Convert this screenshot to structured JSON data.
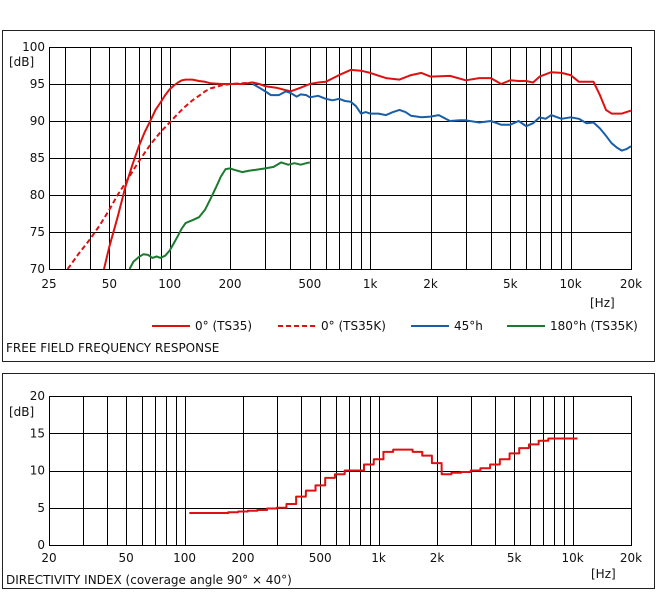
{
  "chart_data": [
    {
      "type": "line",
      "title": "FREE FIELD FREQUENCY RESPONSE",
      "ylabel": "[dB]",
      "xlabel": "[Hz]",
      "xscale": "log",
      "xlim": [
        25,
        20000
      ],
      "ylim": [
        70,
        100
      ],
      "grid": true,
      "legend_position": "bottom",
      "xticks": [
        25,
        50,
        100,
        200,
        500,
        1000,
        2000,
        5000,
        10000,
        20000
      ],
      "xtick_labels": [
        "25",
        "50",
        "100",
        "200",
        "500",
        "1k",
        "2k",
        "5k",
        "10k",
        "20k"
      ],
      "yticks": [
        70,
        75,
        80,
        85,
        90,
        95,
        100
      ],
      "series": [
        {
          "name": "0° (TS35)",
          "color": "#dd1111",
          "dash": false,
          "x": [
            47,
            50,
            55,
            60,
            65,
            70,
            75,
            80,
            85,
            90,
            95,
            100,
            105,
            110,
            115,
            120,
            130,
            140,
            150,
            160,
            180,
            200,
            230,
            260,
            280,
            300,
            340,
            400,
            450,
            500,
            550,
            600,
            700,
            800,
            900,
            1000,
            1200,
            1400,
            1600,
            1800,
            2000,
            2500,
            3000,
            3500,
            4000,
            4500,
            5000,
            5500,
            6000,
            6500,
            7000,
            8000,
            9000,
            10000,
            11000,
            12000,
            13000,
            14000,
            15000,
            16000,
            18000,
            20000
          ],
          "values": [
            70,
            73,
            77,
            81,
            84,
            86.5,
            88.5,
            90,
            91.5,
            92.5,
            93.5,
            94.3,
            94.8,
            95.2,
            95.5,
            95.6,
            95.6,
            95.4,
            95.3,
            95.1,
            95,
            95,
            95,
            95.2,
            95,
            94.7,
            94.5,
            94,
            94.5,
            95,
            95.2,
            95.3,
            96.2,
            96.9,
            96.8,
            96.5,
            95.8,
            95.6,
            96.2,
            96.5,
            96,
            96.1,
            95.5,
            95.8,
            95.8,
            95,
            95.5,
            95.4,
            95.4,
            95.2,
            96,
            96.6,
            96.5,
            96.2,
            95.3,
            95.3,
            95.3,
            93.5,
            91.5,
            91,
            91,
            91.4
          ]
        },
        {
          "name": "0° (TS35K)",
          "color": "#dd1111",
          "dash": true,
          "x": [
            31,
            35,
            40,
            45,
            50,
            55,
            60,
            70,
            80,
            90,
            100,
            110,
            120,
            130,
            140,
            150,
            160,
            170,
            180,
            200,
            230,
            260
          ],
          "values": [
            70,
            72,
            74,
            76,
            78,
            80,
            81.6,
            84.5,
            86.8,
            88.5,
            89.8,
            91,
            92,
            92.8,
            93.4,
            94,
            94.4,
            94.6,
            94.8,
            95,
            95.1,
            95.2
          ]
        },
        {
          "name": "45°h",
          "color": "#1a5ea8",
          "dash": false,
          "x": [
            260,
            280,
            300,
            320,
            350,
            380,
            400,
            430,
            450,
            480,
            500,
            550,
            600,
            650,
            700,
            750,
            800,
            850,
            900,
            950,
            1000,
            1100,
            1200,
            1300,
            1400,
            1500,
            1600,
            1800,
            2000,
            2200,
            2500,
            2800,
            3000,
            3500,
            4000,
            4500,
            5000,
            5500,
            6000,
            6500,
            7000,
            7500,
            8000,
            9000,
            10000,
            11000,
            12000,
            13000,
            14000,
            15000,
            16000,
            17000,
            18000,
            19000,
            20000
          ],
          "values": [
            95,
            94.5,
            94,
            93.5,
            93.5,
            94,
            93.8,
            93.3,
            93.6,
            93.5,
            93.2,
            93.4,
            93,
            92.8,
            93,
            92.7,
            92.6,
            92,
            91,
            91.2,
            91,
            91,
            90.8,
            91.2,
            91.5,
            91.2,
            90.7,
            90.5,
            90.6,
            90.8,
            90,
            90.1,
            90.1,
            89.8,
            90,
            89.5,
            89.5,
            90,
            89.3,
            89.7,
            90.5,
            90.3,
            90.8,
            90.3,
            90.5,
            90.3,
            89.7,
            89.8,
            89,
            88,
            87,
            86.4,
            86,
            86.2,
            86.6
          ]
        },
        {
          "name": "180°h (TS35K)",
          "color": "#1a7a2e",
          "dash": false,
          "x": [
            63,
            66,
            70,
            74,
            78,
            82,
            86,
            90,
            95,
            100,
            105,
            110,
            115,
            120,
            125,
            130,
            140,
            150,
            160,
            170,
            180,
            190,
            200,
            210,
            230,
            250,
            270,
            300,
            330,
            360,
            390,
            420,
            450,
            480,
            500
          ],
          "values": [
            70,
            71,
            71.6,
            72,
            71.9,
            71.5,
            71.7,
            71.5,
            71.8,
            72.5,
            73.5,
            74.5,
            75.5,
            76.2,
            76.4,
            76.6,
            77,
            78,
            79.5,
            81,
            82.5,
            83.5,
            83.6,
            83.4,
            83.1,
            83.3,
            83.4,
            83.6,
            83.8,
            84.4,
            84.1,
            84.3,
            84.1,
            84.3,
            84.4
          ]
        }
      ]
    },
    {
      "type": "line",
      "title": "DIRECTIVITY INDEX (coverage angle 90° × 40°)",
      "ylabel": "[dB]",
      "xlabel": "[Hz]",
      "xscale": "log",
      "xlim": [
        20,
        20000
      ],
      "ylim": [
        0,
        20
      ],
      "grid": true,
      "xticks": [
        20,
        50,
        100,
        200,
        500,
        1000,
        2000,
        5000,
        10000,
        20000
      ],
      "xtick_labels": [
        "20",
        "50",
        "100",
        "200",
        "500",
        "1k",
        "2k",
        "5k",
        "10k",
        "20k"
      ],
      "yticks": [
        0,
        5,
        10,
        15,
        20
      ],
      "series": [
        {
          "name": "",
          "color": "#dd1111",
          "step": true,
          "x": [
            112,
            126,
            141,
            159,
            178,
            200,
            224,
            251,
            282,
            316,
            355,
            398,
            447,
            501,
            562,
            631,
            708,
            794,
            891,
            1000,
            1122,
            1259,
            1413,
            1585,
            1778,
            1995,
            2239,
            2512,
            2818,
            3162,
            3548,
            3981,
            4467,
            5012,
            5623,
            6310,
            7079,
            7943,
            8913,
            10000
          ],
          "values": [
            4.3,
            4.3,
            4.3,
            4.3,
            4.4,
            4.5,
            4.6,
            4.7,
            4.9,
            5.0,
            5.5,
            6.5,
            7.3,
            8.0,
            9.0,
            9.5,
            10.0,
            10.0,
            10.8,
            11.5,
            12.5,
            12.8,
            12.8,
            12.5,
            12.0,
            11.0,
            9.5,
            9.7,
            9.8,
            10.0,
            10.3,
            10.8,
            11.5,
            12.3,
            13.0,
            13.5,
            14.0,
            14.3,
            14.3,
            14.3
          ]
        }
      ]
    }
  ]
}
